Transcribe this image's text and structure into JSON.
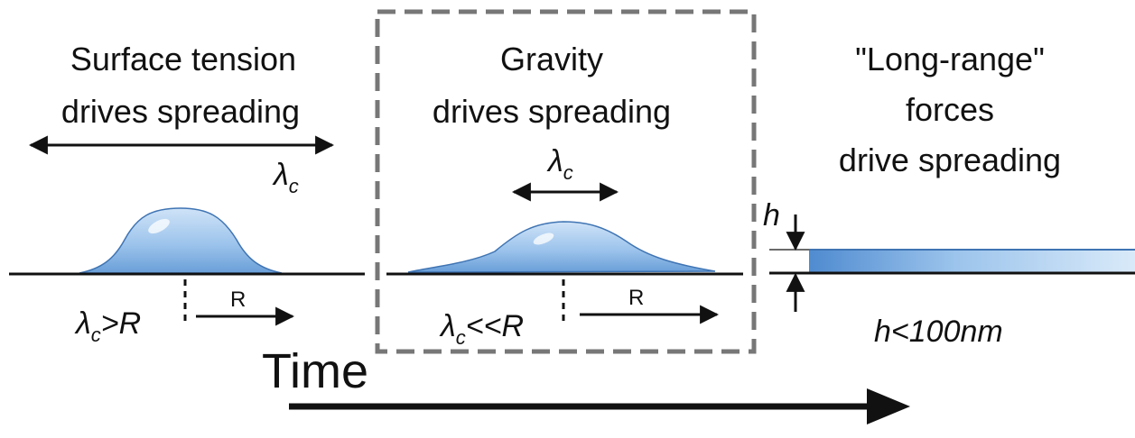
{
  "panels": [
    {
      "title_line1": "Surface tension",
      "title_line2": "drives spreading",
      "lambda_label": "λ",
      "lambda_sub": "c",
      "condition_lambda": "λ",
      "condition_sub": "c",
      "condition_rel": ">R",
      "radius_label": "R"
    },
    {
      "title_line1": "Gravity",
      "title_line2": "drives spreading",
      "lambda_label": "λ",
      "lambda_sub": "c",
      "condition_lambda": "λ",
      "condition_sub": "c",
      "condition_rel": "<<R",
      "radius_label": "R"
    },
    {
      "title_line1": "\"Long-range\"",
      "title_line2": "forces",
      "title_line3": "drive spreading",
      "thickness_label": "h",
      "condition": "h<100nm"
    }
  ],
  "time_label": "Time",
  "colors": {
    "drop_light": "#d6e8f8",
    "drop_mid": "#9cc4ec",
    "drop_dark": "#5b94d1",
    "drop_edge": "#3f74b3",
    "dashed_box": "#777777",
    "ink": "#111111"
  }
}
